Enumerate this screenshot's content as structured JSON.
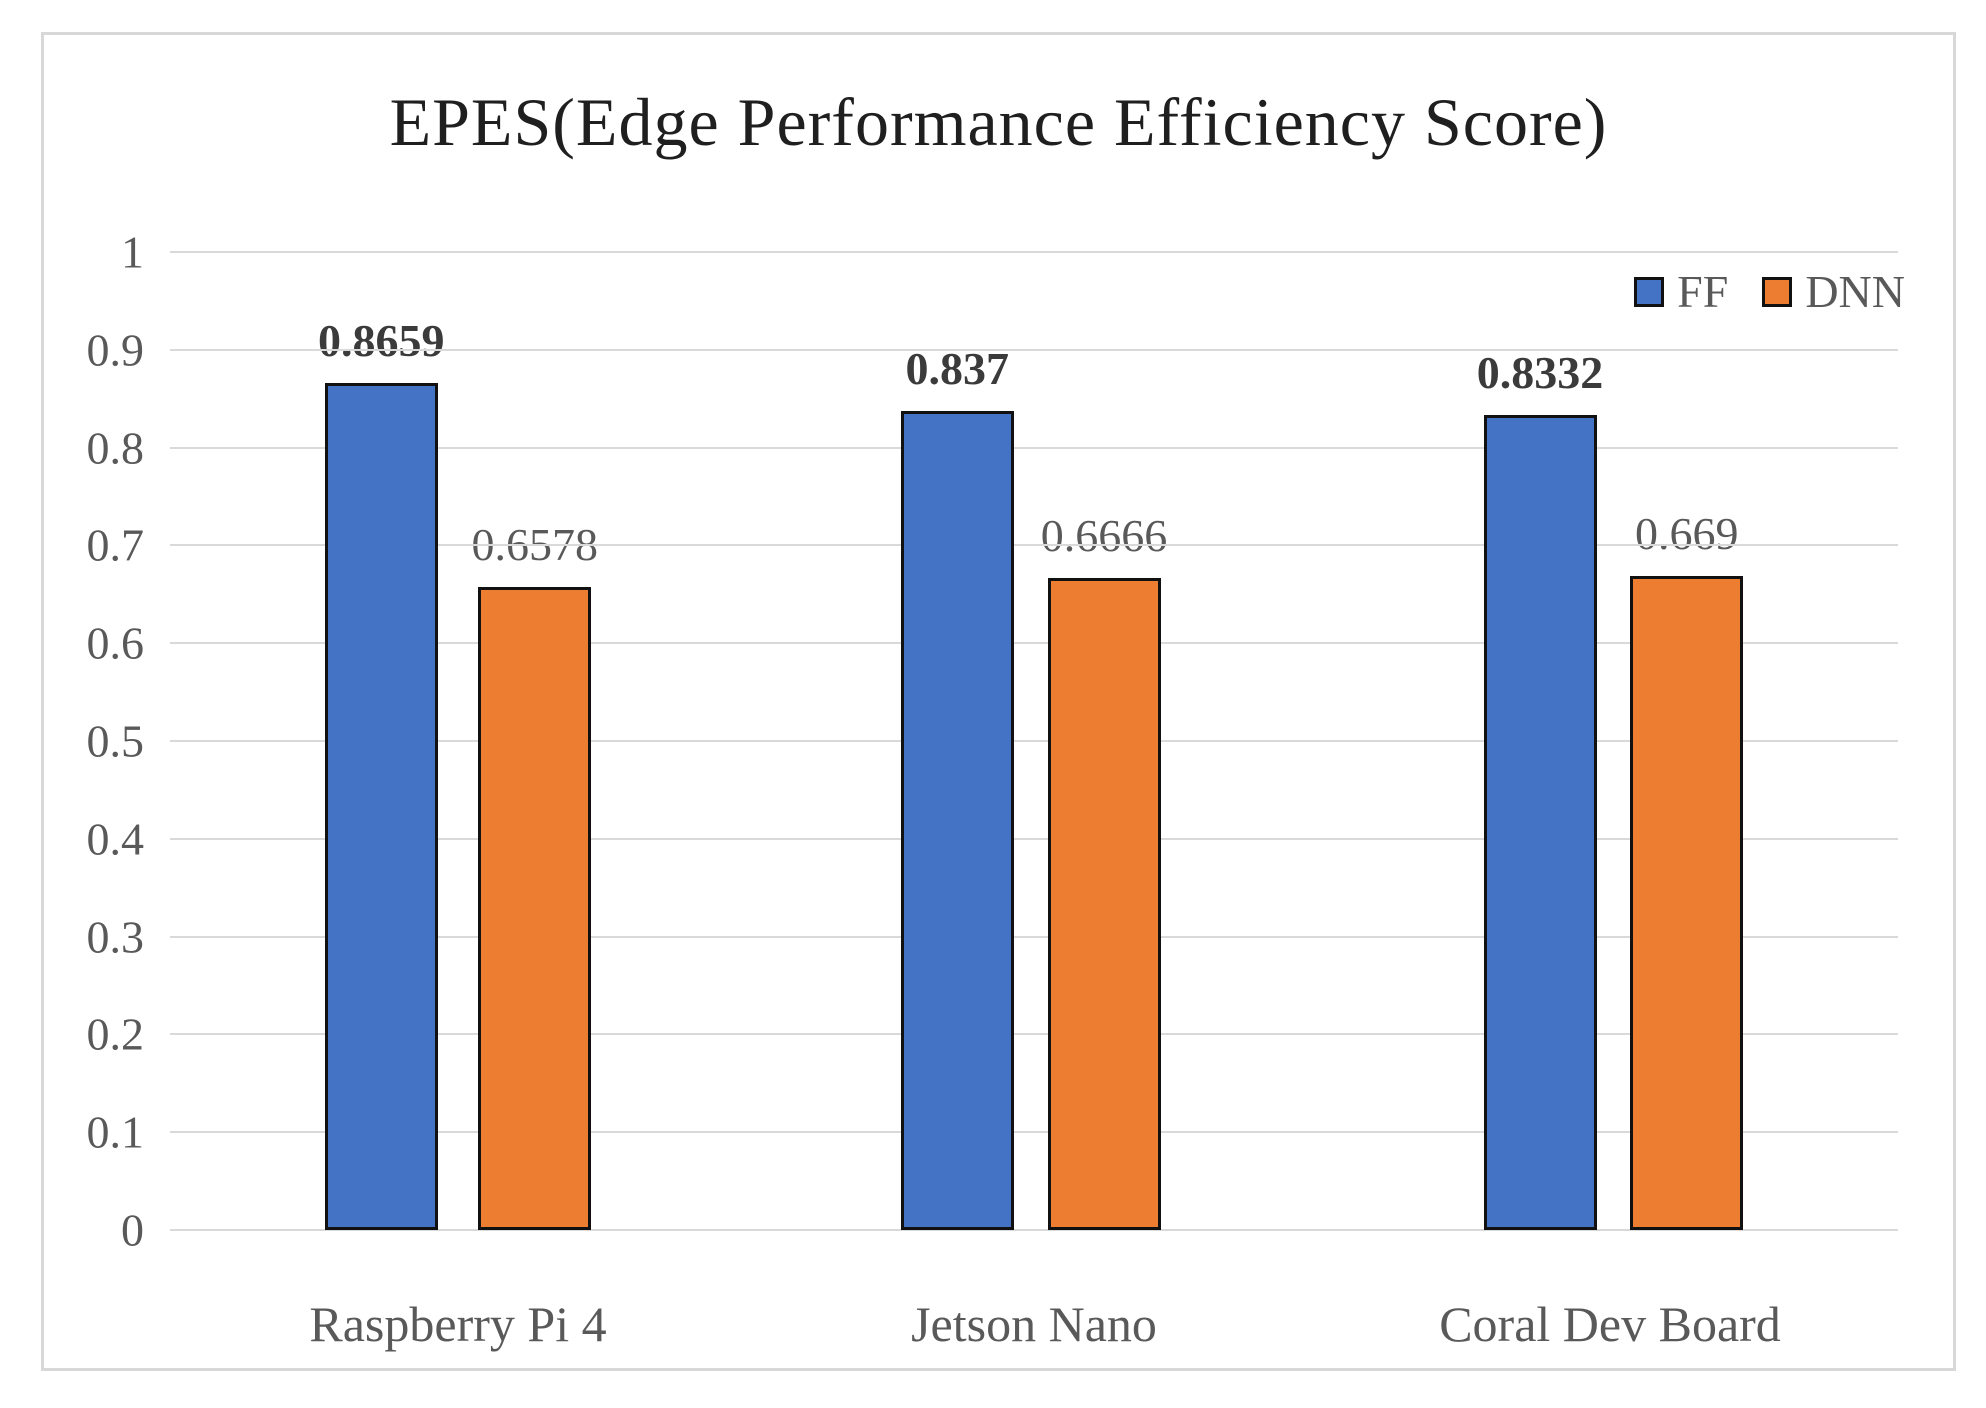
{
  "chart_data": {
    "type": "bar",
    "title": "EPES(Edge Performance Efficiency Score)",
    "categories": [
      "Raspberry Pi 4",
      "Jetson Nano",
      "Coral Dev Board"
    ],
    "series": [
      {
        "name": "FF",
        "color": "#4472C4",
        "values": [
          0.8659,
          0.837,
          0.8332
        ],
        "labels": [
          "0.8659",
          "0.837",
          "0.8332"
        ],
        "label_style": "bold"
      },
      {
        "name": "DNN",
        "color": "#ED7D31",
        "values": [
          0.6578,
          0.6666,
          0.669
        ],
        "labels": [
          "0.6578",
          "0.6666",
          "0.669"
        ],
        "label_style": "regular"
      }
    ],
    "y_axis": {
      "min": 0,
      "max": 1,
      "step": 0.1,
      "tick_labels": [
        "1",
        "0.9",
        "0.8",
        "0.7",
        "0.6",
        "0.5",
        "0.4",
        "0.3",
        "0.2",
        "0.1",
        "0"
      ]
    },
    "ylim": [
      0,
      1
    ],
    "grid": true,
    "gridline_color": "#D9D9D9",
    "bar_border_color": "#111111",
    "legend_position": "top-right",
    "xlabel": "",
    "ylabel": ""
  }
}
